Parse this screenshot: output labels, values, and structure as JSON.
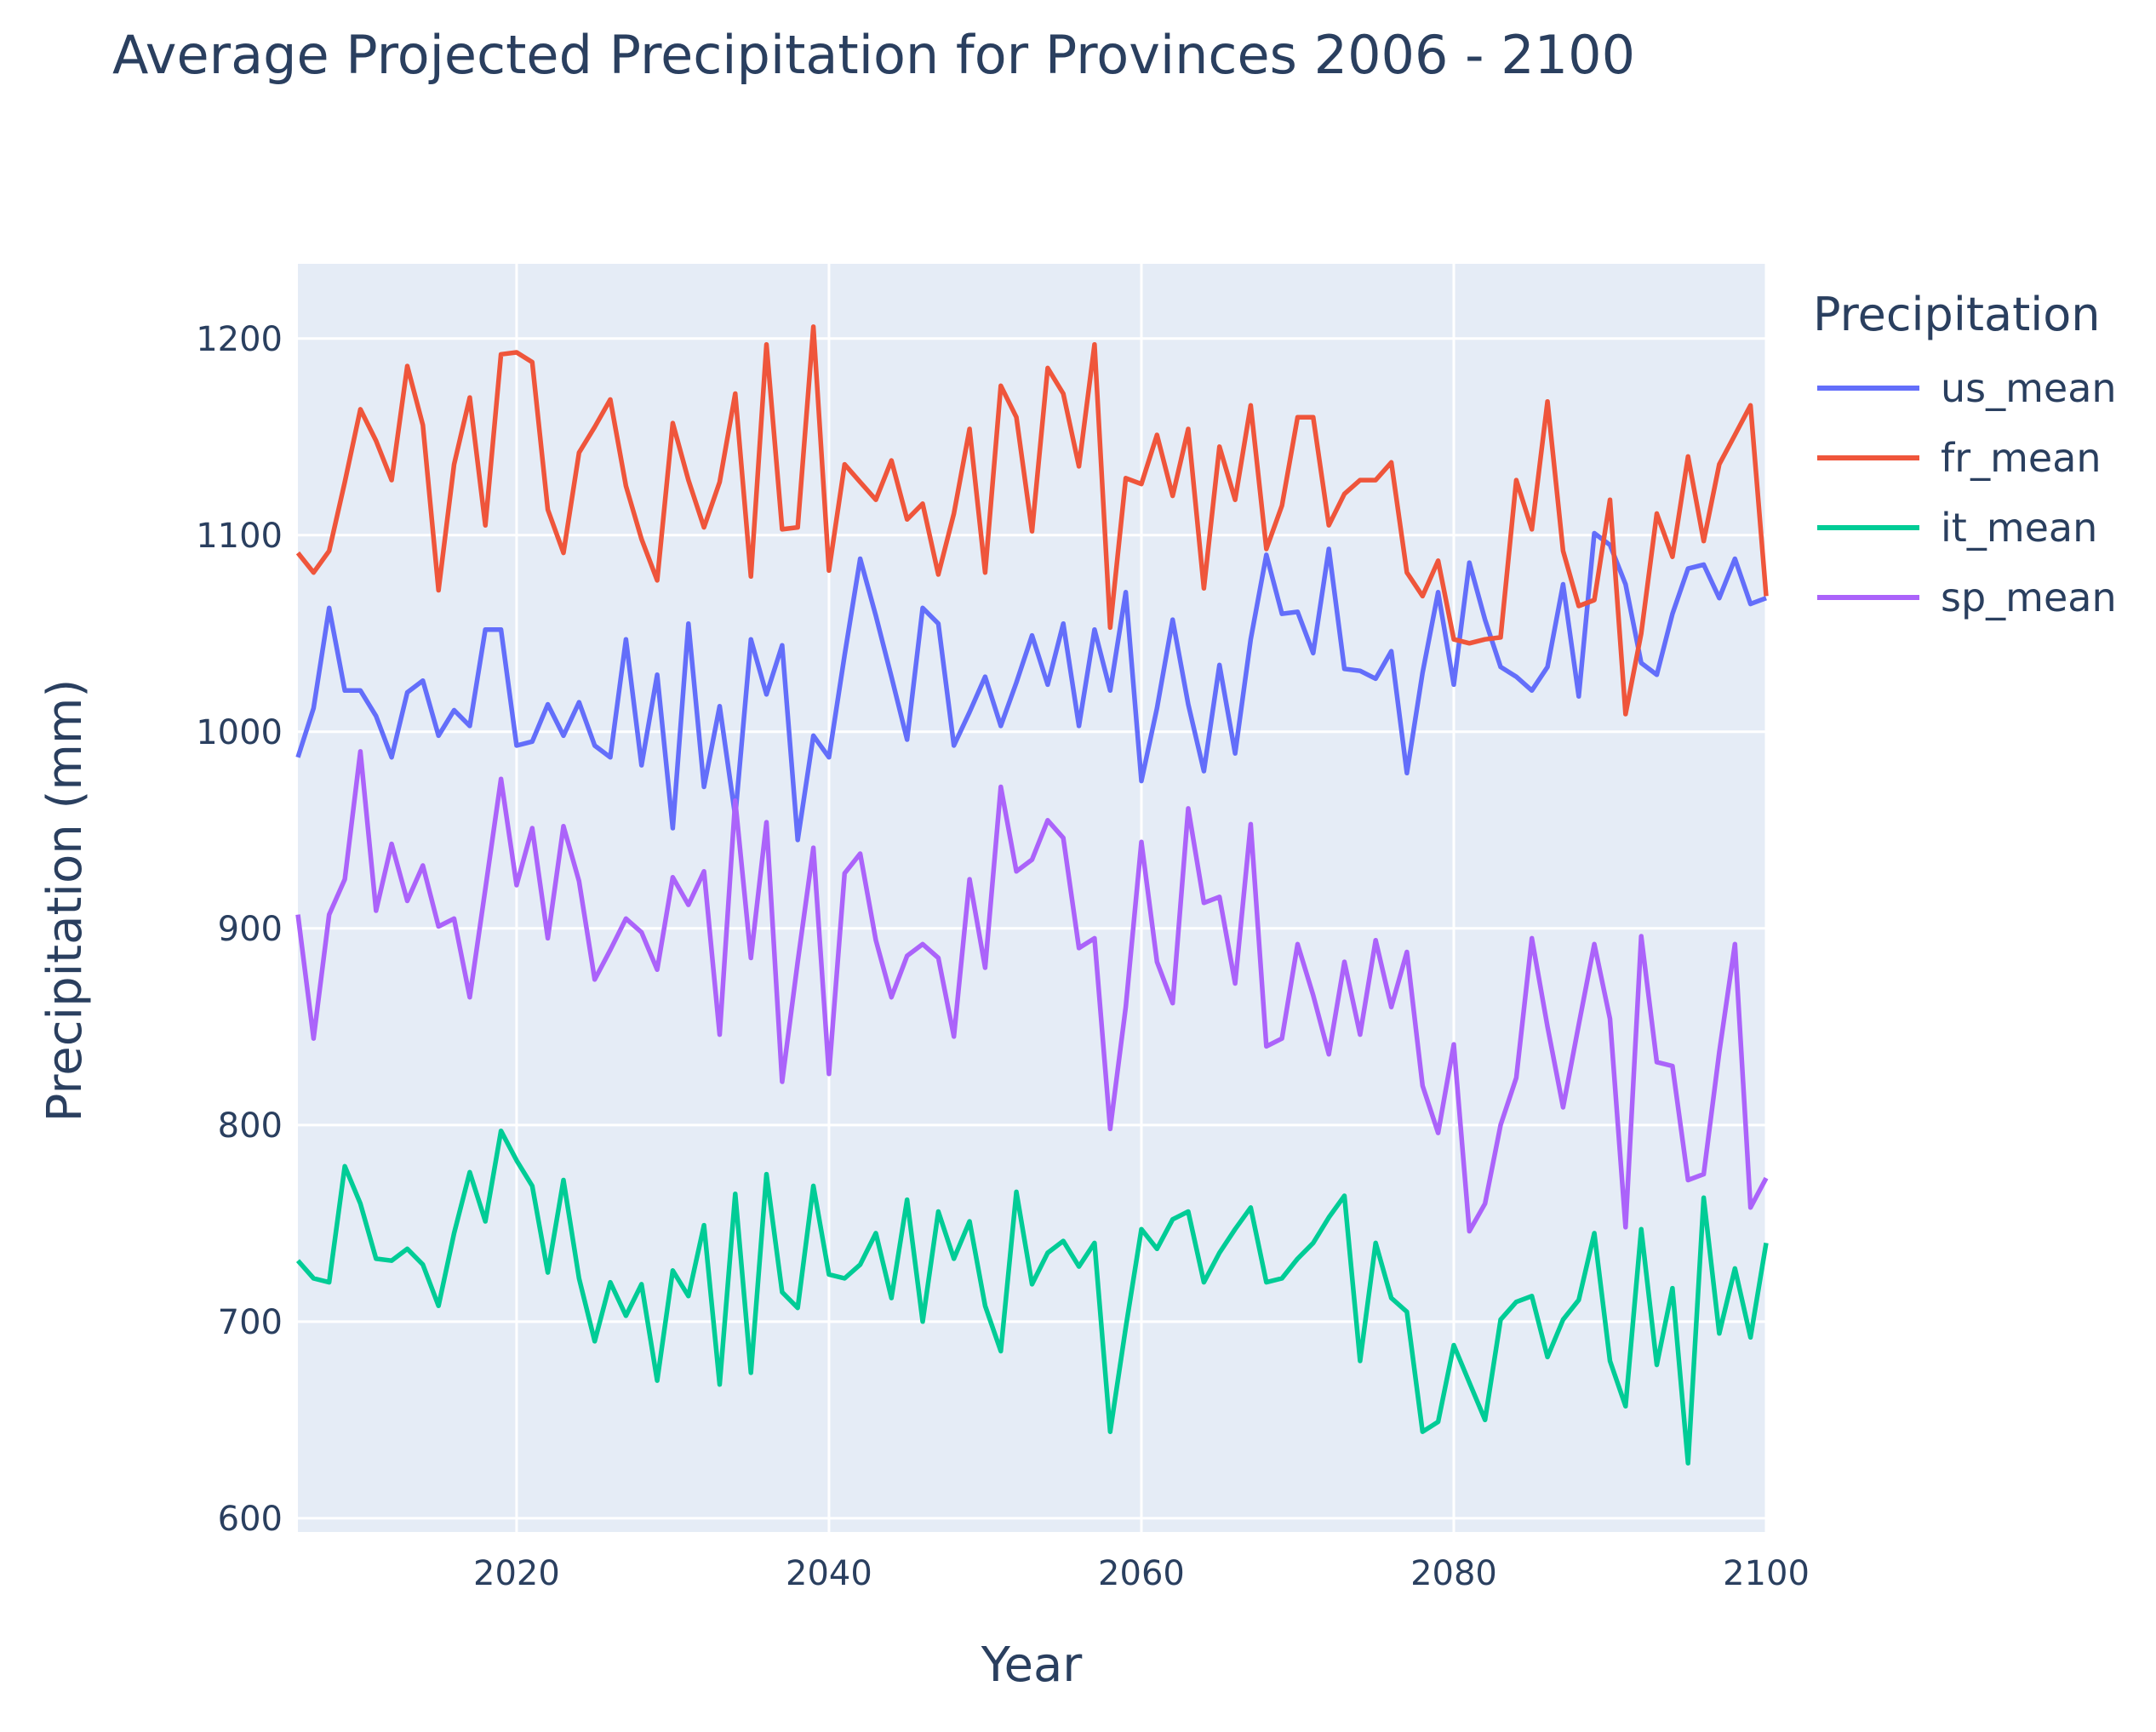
{
  "chart_data": {
    "type": "line",
    "title": "Average Projected Precipitation for Provinces 2006 - 2100",
    "xlabel": "Year",
    "ylabel": "Precipitation (mm)",
    "xlim": [
      2006,
      2100
    ],
    "ylim": [
      593,
      1238
    ],
    "x_ticks": [
      2020,
      2040,
      2060,
      2080,
      2100
    ],
    "y_ticks": [
      600,
      700,
      800,
      900,
      1000,
      1100,
      1200
    ],
    "grid": true,
    "legend": {
      "title": "Precipitation",
      "placement": "top-right outside"
    },
    "x": [
      2006,
      2007,
      2008,
      2009,
      2010,
      2011,
      2012,
      2013,
      2014,
      2015,
      2016,
      2017,
      2018,
      2019,
      2020,
      2021,
      2022,
      2023,
      2024,
      2025,
      2026,
      2027,
      2028,
      2029,
      2030,
      2031,
      2032,
      2033,
      2034,
      2035,
      2036,
      2037,
      2038,
      2039,
      2040,
      2041,
      2042,
      2043,
      2044,
      2045,
      2046,
      2047,
      2048,
      2049,
      2050,
      2051,
      2052,
      2053,
      2054,
      2055,
      2056,
      2057,
      2058,
      2059,
      2060,
      2061,
      2062,
      2063,
      2064,
      2065,
      2066,
      2067,
      2068,
      2069,
      2070,
      2071,
      2072,
      2073,
      2074,
      2075,
      2076,
      2077,
      2078,
      2079,
      2080,
      2081,
      2082,
      2083,
      2084,
      2085,
      2086,
      2087,
      2088,
      2089,
      2090,
      2091,
      2092,
      2093,
      2094,
      2095,
      2096,
      2097,
      2098,
      2099,
      2100
    ],
    "series": [
      {
        "name": "us_mean",
        "color": "#636efa",
        "values": [
          987,
          1012,
          1063,
          1021,
          1021,
          1008,
          987,
          1020,
          1026,
          998,
          1011,
          1003,
          1052,
          1052,
          993,
          995,
          1014,
          998,
          1015,
          993,
          987,
          1047,
          983,
          1029,
          951,
          1055,
          972,
          1013,
          957,
          1047,
          1019,
          1044,
          945,
          998,
          987,
          1039,
          1088,
          1059,
          1028,
          996,
          1063,
          1055,
          993,
          1010,
          1028,
          1003,
          1025,
          1049,
          1024,
          1055,
          1003,
          1052,
          1021,
          1071,
          975,
          1012,
          1057,
          1014,
          980,
          1034,
          989,
          1047,
          1090,
          1060,
          1061,
          1040,
          1093,
          1032,
          1031,
          1027,
          1041,
          979,
          1030,
          1071,
          1024,
          1086,
          1057,
          1033,
          1028,
          1021,
          1033,
          1075,
          1018,
          1101,
          1095,
          1075,
          1035,
          1029,
          1060,
          1083,
          1085,
          1068,
          1088,
          1065,
          1068
        ]
      },
      {
        "name": "fr_mean",
        "color": "#ef553b",
        "values": [
          1091,
          1081,
          1092,
          1127,
          1164,
          1148,
          1128,
          1186,
          1156,
          1072,
          1136,
          1170,
          1105,
          1192,
          1193,
          1188,
          1113,
          1091,
          1142,
          1155,
          1169,
          1125,
          1098,
          1077,
          1157,
          1128,
          1104,
          1127,
          1172,
          1079,
          1197,
          1103,
          1104,
          1206,
          1082,
          1136,
          1127,
          1118,
          1138,
          1108,
          1116,
          1080,
          1111,
          1154,
          1081,
          1176,
          1160,
          1102,
          1185,
          1172,
          1135,
          1197,
          1053,
          1129,
          1126,
          1151,
          1120,
          1154,
          1073,
          1145,
          1118,
          1166,
          1093,
          1115,
          1160,
          1160,
          1105,
          1121,
          1128,
          1128,
          1137,
          1081,
          1069,
          1087,
          1047,
          1045,
          1047,
          1048,
          1128,
          1103,
          1168,
          1092,
          1064,
          1067,
          1118,
          1009,
          1050,
          1111,
          1089,
          1140,
          1097,
          1136,
          1151,
          1166,
          1069
        ]
      },
      {
        "name": "it_mean",
        "color": "#00cc96",
        "values": [
          731,
          722,
          720,
          779,
          760,
          732,
          731,
          737,
          729,
          708,
          745,
          776,
          751,
          797,
          782,
          769,
          725,
          772,
          722,
          690,
          720,
          703,
          719,
          670,
          726,
          713,
          749,
          668,
          765,
          674,
          775,
          715,
          707,
          769,
          724,
          722,
          729,
          745,
          712,
          762,
          700,
          756,
          732,
          751,
          708,
          685,
          766,
          719,
          735,
          741,
          728,
          740,
          644,
          697,
          747,
          737,
          752,
          756,
          720,
          735,
          747,
          758,
          720,
          722,
          732,
          740,
          753,
          764,
          680,
          740,
          712,
          705,
          644,
          649,
          688,
          669,
          650,
          701,
          710,
          713,
          682,
          701,
          711,
          745,
          680,
          657,
          747,
          678,
          717,
          628,
          763,
          694,
          727,
          692,
          740
        ]
      },
      {
        "name": "sp_mean",
        "color": "#ab63fa",
        "values": [
          907,
          844,
          907,
          925,
          990,
          909,
          943,
          914,
          932,
          901,
          905,
          865,
          920,
          976,
          922,
          951,
          895,
          952,
          924,
          874,
          889,
          905,
          898,
          879,
          926,
          912,
          929,
          846,
          965,
          885,
          954,
          822,
          883,
          941,
          826,
          928,
          938,
          894,
          865,
          886,
          892,
          885,
          845,
          925,
          880,
          972,
          929,
          935,
          955,
          946,
          890,
          895,
          798,
          860,
          944,
          883,
          862,
          961,
          913,
          916,
          872,
          953,
          840,
          844,
          892,
          866,
          836,
          883,
          846,
          894,
          860,
          888,
          820,
          796,
          841,
          746,
          760,
          800,
          824,
          895,
          850,
          809,
          851,
          892,
          854,
          748,
          896,
          832,
          830,
          772,
          775,
          837,
          892,
          758,
          773
        ]
      }
    ]
  }
}
